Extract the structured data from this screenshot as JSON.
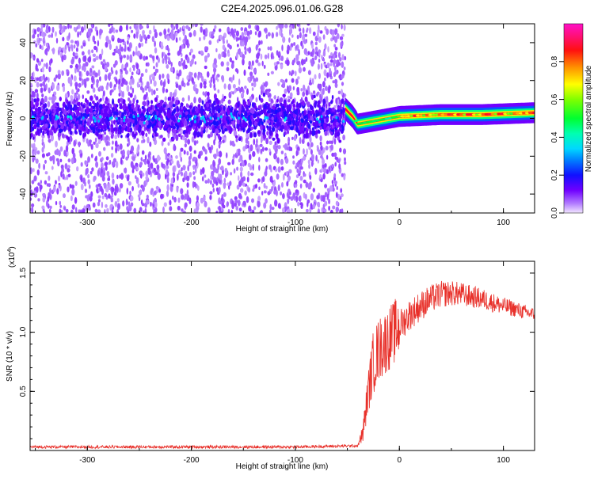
{
  "title": "C2E4.2025.096.01.06.G28",
  "chart_data": [
    {
      "type": "heatmap",
      "xlabel": "Height of straight line (km)",
      "ylabel": "Frequency (Hz)",
      "xlim": [
        -355,
        130
      ],
      "ylim": [
        -50,
        50
      ],
      "xticks": [
        -300,
        -200,
        -100,
        0,
        100
      ],
      "yticks": [
        -40,
        -20,
        0,
        20,
        40
      ],
      "grid": false,
      "colorbar": {
        "label": "Normalized spectral amplitude",
        "range": [
          0,
          1
        ],
        "ticks": [
          "0.0",
          "0.2",
          "0.4",
          "0.6",
          "0.8"
        ],
        "tick_values": [
          0,
          0.2,
          0.4,
          0.6,
          0.8
        ]
      },
      "features": {
        "noise_region_x": [
          -355,
          -52
        ],
        "tone_track": [
          {
            "x": -52,
            "f": 5
          },
          {
            "x": -45,
            "f": 1
          },
          {
            "x": -40,
            "f": -3
          },
          {
            "x": -20,
            "f": -1
          },
          {
            "x": 0,
            "f": 1
          },
          {
            "x": 40,
            "f": 2
          },
          {
            "x": 80,
            "f": 2
          },
          {
            "x": 130,
            "f": 3
          }
        ]
      }
    },
    {
      "type": "line",
      "xlabel": "Height of straight line (km)",
      "ylabel": "SNR (10 * v/v)",
      "y_multiplier": "(x10",
      "y_multiplier_exp": "4",
      "y_multiplier_close": ")",
      "xlim": [
        -355,
        130
      ],
      "ylim": [
        0,
        1.6
      ],
      "xticks": [
        -300,
        -200,
        -100,
        0,
        100
      ],
      "yticks": [
        "0.5",
        "1.0",
        "1.5"
      ],
      "ytick_values": [
        0.5,
        1.0,
        1.5
      ],
      "line_color": "#e8302a",
      "series": [
        {
          "x": [
            -355,
            -300,
            -200,
            -100,
            -40,
            -35,
            -30,
            -25,
            -20,
            -15,
            -10,
            -5,
            0,
            10,
            20,
            30,
            40,
            50,
            60,
            70,
            80,
            90,
            100,
            110,
            120,
            130
          ],
          "values": [
            0.03,
            0.03,
            0.03,
            0.03,
            0.04,
            0.15,
            0.5,
            0.75,
            0.85,
            0.9,
            0.95,
            1.0,
            1.05,
            1.15,
            1.22,
            1.28,
            1.32,
            1.33,
            1.32,
            1.3,
            1.28,
            1.25,
            1.22,
            1.2,
            1.17,
            1.15
          ]
        }
      ]
    }
  ]
}
